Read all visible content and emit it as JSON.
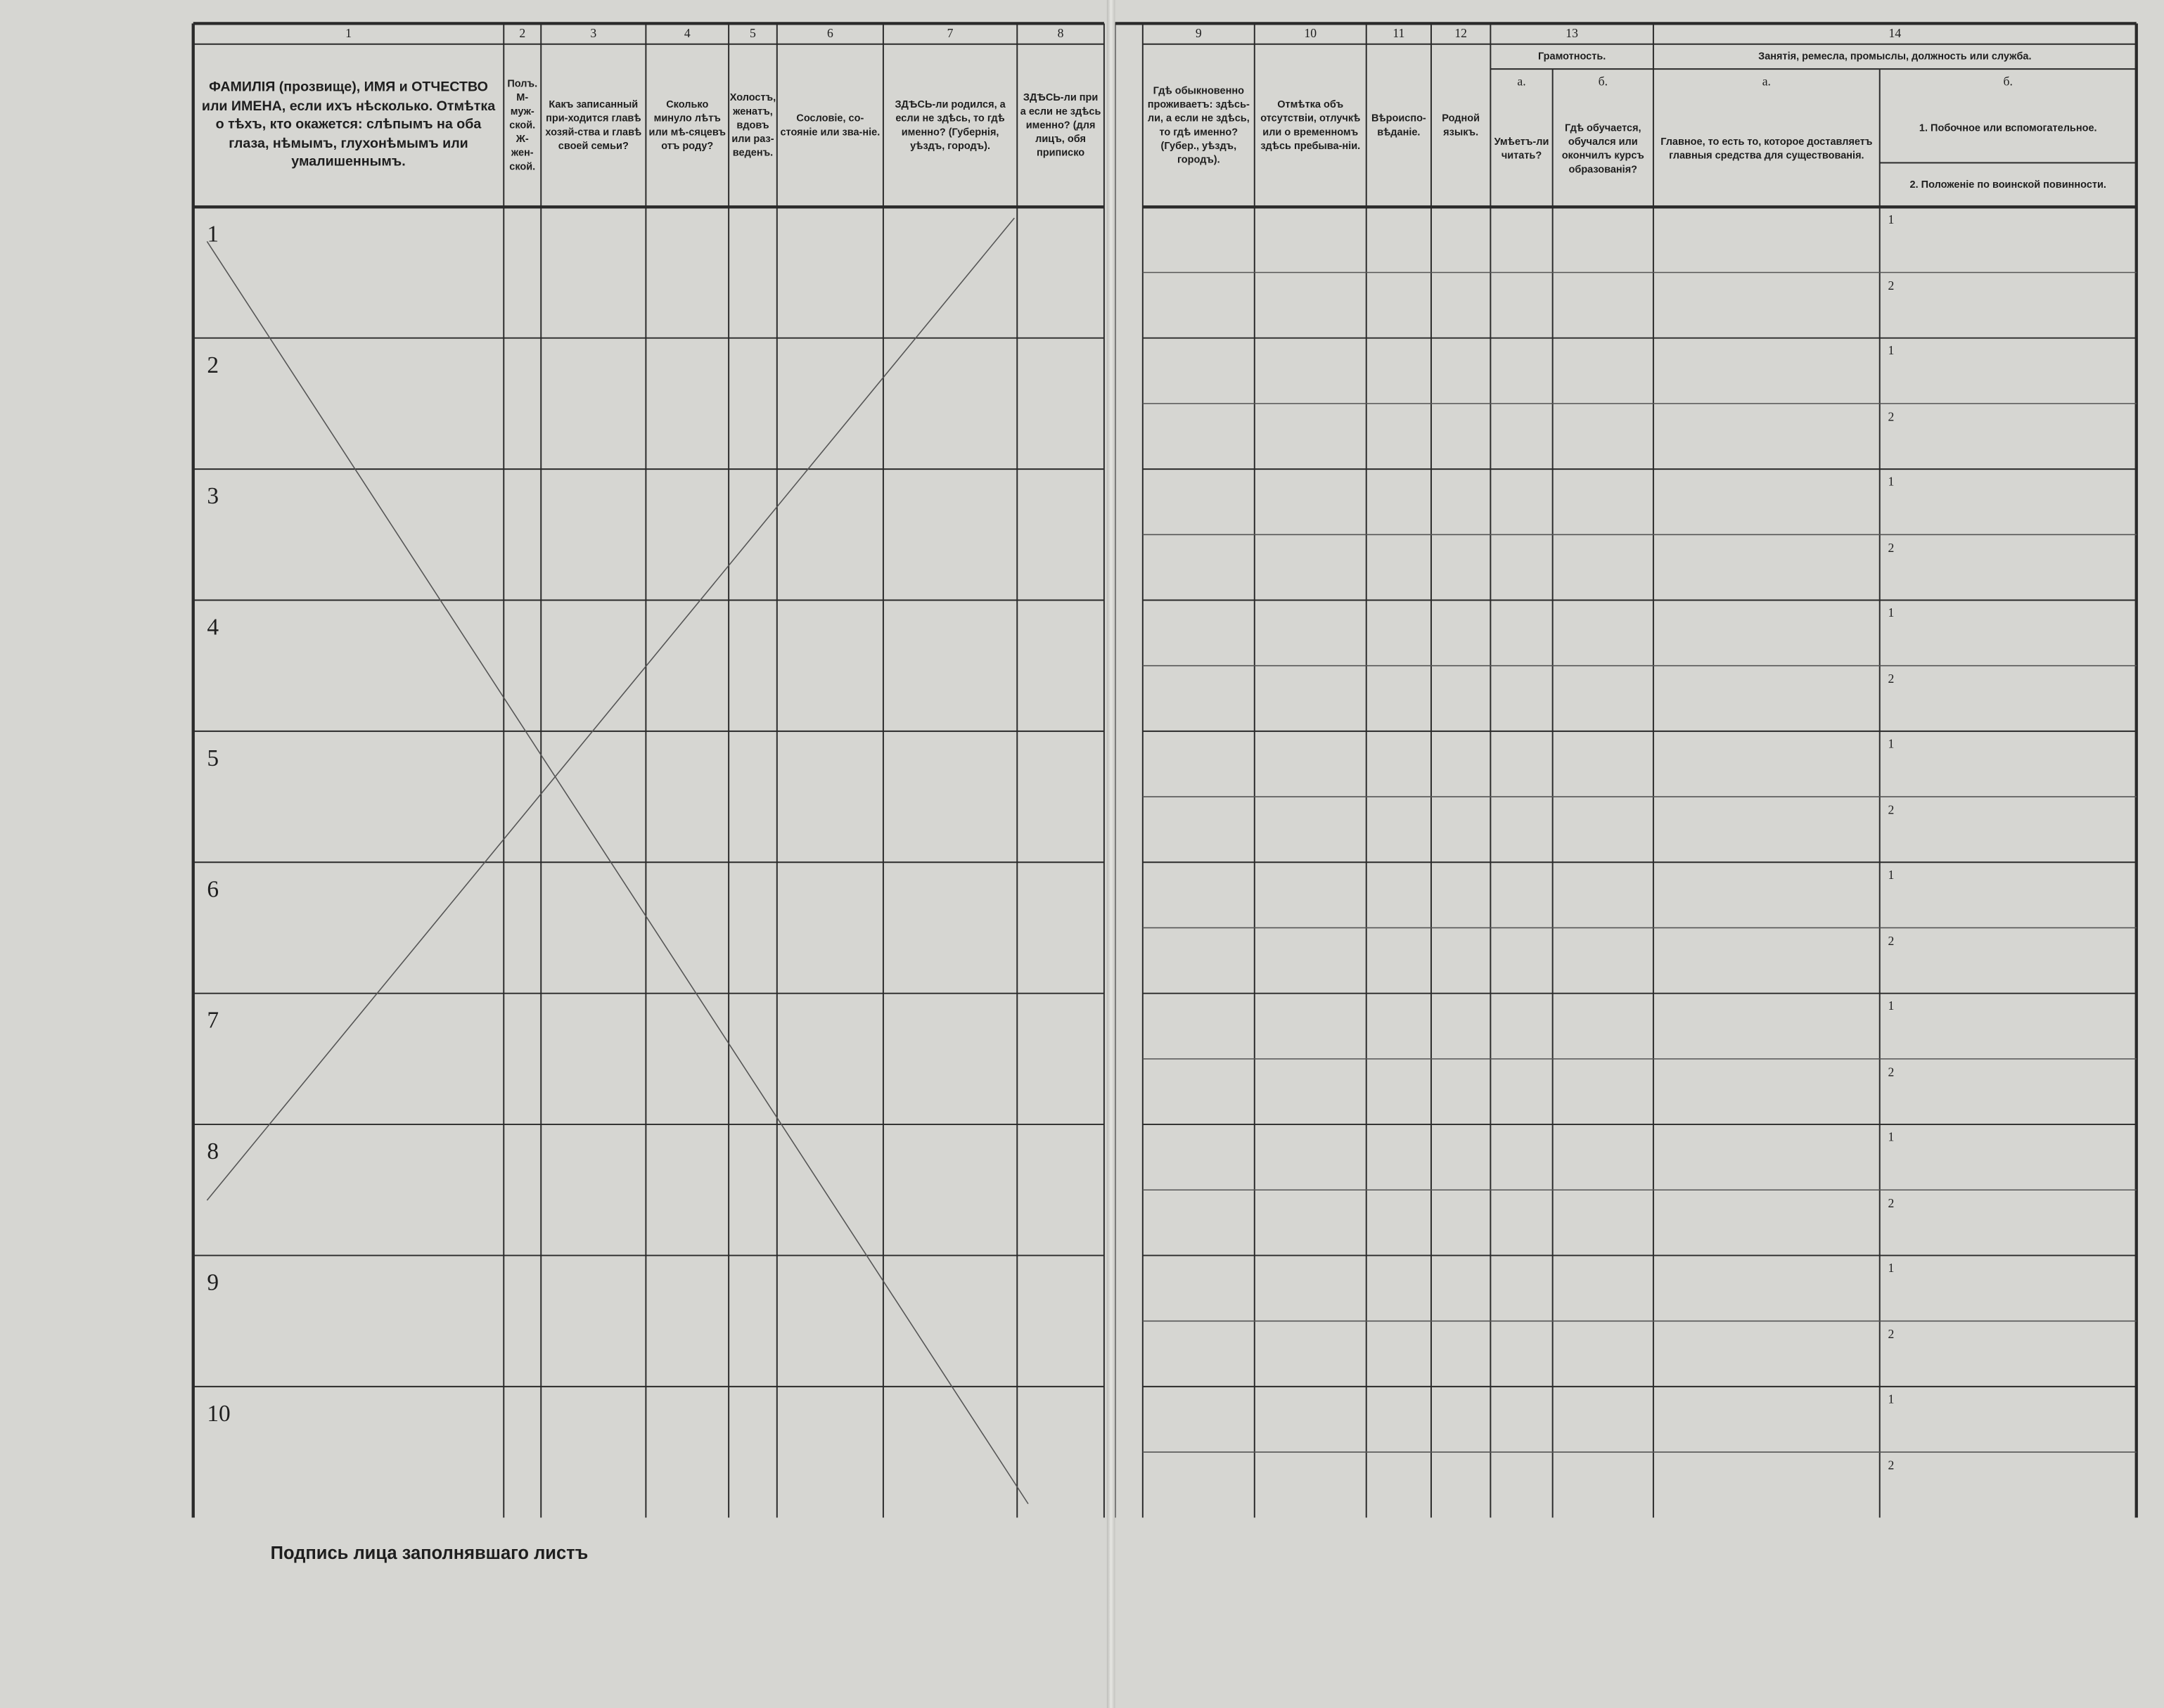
{
  "left_page": {
    "columns": [
      {
        "number": "1",
        "header": "ФАМИЛІЯ (прозвище), ИМЯ и ОТЧЕСТВО или ИМЕНА, если ихъ нѣсколько. Отмѣтка о тѣхъ, кто окажется: слѣпымъ на оба глаза, нѣмымъ, глухонѣмымъ или умалишеннымъ."
      },
      {
        "number": "2",
        "header": "Полъ. М-муж-ской. Ж-жен-ской."
      },
      {
        "number": "3",
        "header": "Какъ записанный при-ходится главѣ хозяй-ства и главѣ своей семьи?"
      },
      {
        "number": "4",
        "header": "Сколько минуло лѣтъ или мѣ-сяцевъ отъ роду?"
      },
      {
        "number": "5",
        "header": "Холостъ, женатъ, вдовъ или раз-веденъ."
      },
      {
        "number": "6",
        "header": "Сословіе, со-стояніе или зва-ніе."
      },
      {
        "number": "7",
        "header": "ЗДѢСЬ-ли родился, а если не здѣсь, то гдѣ именно? (Губернія, уѣздъ, городъ)."
      },
      {
        "number": "8",
        "header": "ЗДѢСЬ-ли при а если не здѣсь именно? (для лицъ, обя приписко"
      }
    ],
    "row_numbers": [
      "1",
      "2",
      "3",
      "4",
      "5",
      "6",
      "7",
      "8",
      "9",
      "10"
    ],
    "signature": "Подпись лица заполнявшаго листъ"
  },
  "right_page": {
    "columns": [
      {
        "number": "9",
        "header": "Гдѣ обыкновенно проживаетъ: здѣсь-ли, а если не здѣсь, то гдѣ именно? (Губер., уѣздъ, городъ)."
      },
      {
        "number": "10",
        "header": "Отмѣтка объ отсутствіи, отлучкѣ или о временномъ здѣсь пребыва-ніи."
      },
      {
        "number": "11",
        "header": "Вѣроиспо-вѣданіе."
      },
      {
        "number": "12",
        "header": "Родной языкъ."
      },
      {
        "number": "13",
        "header": "Грамотность.",
        "sub": [
          {
            "letter": "а.",
            "header": "Умѣетъ-ли читать?"
          },
          {
            "letter": "б.",
            "header": "Гдѣ обучается, обучался или окончилъ курсъ образованія?"
          }
        ]
      },
      {
        "number": "14",
        "header": "Занятія, ремесла, промыслы, должность или служба.",
        "sub": [
          {
            "letter": "а.",
            "header": "Главное, то есть то, которое доставляетъ главныя средства для существованія."
          },
          {
            "letter": "б.",
            "items": [
              "1. Побочное или вспомогательное.",
              "2. Положеніе по воинской повинности."
            ]
          }
        ]
      }
    ],
    "occupation_line_labels": [
      "1",
      "2"
    ]
  }
}
